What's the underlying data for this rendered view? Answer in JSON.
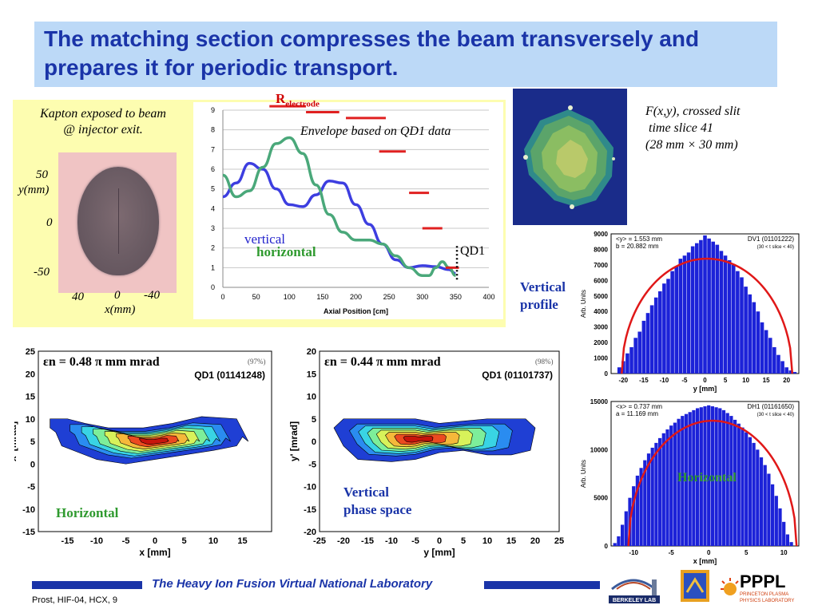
{
  "title": "The matching section compresses the beam transversely and prepares it for periodic transport.",
  "kapton": {
    "caption_line1": "Kapton exposed to beam",
    "caption_line2": "@ injector exit.",
    "y_tick_top": "50",
    "y_label": "y(mm)",
    "y_tick_mid": "0",
    "y_tick_bottom": "-50",
    "x_tick_left": "40",
    "x_tick_mid": "0",
    "x_tick_right": "-40",
    "x_label": "x(mm)"
  },
  "envelope": {
    "electrode_label_main": "R",
    "electrode_label_sub": "electrode",
    "title": "Envelope based on QD1 data",
    "vertical_label": "vertical",
    "horizontal_label": "horizontal",
    "qd1_label": "QD1"
  },
  "beam_image": {
    "caption_line1": "F(x,y),  crossed slit",
    "caption_line2": "time slice 41",
    "caption_line3": "(28 mm × 30 mm)"
  },
  "labels": {
    "vertical_profile": [
      "Vertical",
      "profile"
    ],
    "vertical_phase_space": [
      "Vertical",
      "phase space"
    ],
    "horizontal_phase": "Horizontal",
    "horizontal_profile": "Horizontal"
  },
  "footer": {
    "title": "The Heavy Ion Fusion Virtual National Laboratory",
    "citation": "Prost, HIF-04, HCX, 9"
  },
  "logos": {
    "berkeley": "BERKELEY LAB",
    "pppl": "PPPL",
    "pppl_sub1": "PRINCETON PLASMA",
    "pppl_sub2": "PHYSICS LABORATORY"
  },
  "colors": {
    "title_blue": "#1a34a8",
    "panel_yellow": "#fdfdb0",
    "vertical_blue": "#3d3ee0",
    "horizontal_green": "#4aa87a",
    "electrode_red": "#e02020",
    "histogram_blue": "#1c22d8",
    "fit_red": "#e01818"
  },
  "chart_data": [
    {
      "type": "line",
      "title": "",
      "xlabel": "Axial Position [cm]",
      "ylabel": "",
      "xlim": [
        0,
        400
      ],
      "ylim": [
        0,
        9
      ],
      "xticks": [
        0,
        50,
        100,
        150,
        200,
        250,
        300,
        350,
        400
      ],
      "yticks": [
        0,
        1,
        2,
        3,
        4,
        5,
        6,
        7,
        8,
        9
      ],
      "grid": true,
      "series": [
        {
          "name": "vertical",
          "x": [
            0,
            20,
            40,
            60,
            80,
            100,
            120,
            140,
            160,
            180,
            200,
            220,
            240,
            260,
            280,
            300,
            320,
            340,
            350
          ],
          "y": [
            4.6,
            5.3,
            6.3,
            6.0,
            5.0,
            4.2,
            4.1,
            4.7,
            5.4,
            5.3,
            4.2,
            3.2,
            2.2,
            1.4,
            1.0,
            1.1,
            1.05,
            0.9,
            0.7
          ]
        },
        {
          "name": "horizontal",
          "x": [
            0,
            20,
            40,
            60,
            80,
            100,
            120,
            140,
            160,
            180,
            200,
            220,
            240,
            260,
            280,
            300,
            310,
            320,
            330,
            340,
            350
          ],
          "y": [
            5.7,
            4.6,
            4.9,
            6.1,
            7.3,
            7.6,
            6.8,
            5.2,
            3.7,
            2.8,
            2.4,
            2.4,
            2.2,
            1.6,
            1.0,
            0.6,
            0.6,
            1.0,
            1.3,
            1.0,
            0.6
          ]
        },
        {
          "name": "R electrode",
          "x": [
            [
              10,
              60
            ],
            [
              70,
              125
            ],
            [
              125,
              175
            ],
            [
              185,
              245
            ],
            [
              235,
              275
            ],
            [
              280,
              310
            ],
            [
              300,
              330
            ],
            [
              335,
              355
            ]
          ],
          "y": [
            9.9,
            9.2,
            8.9,
            8.6,
            6.9,
            4.8,
            3.0,
            1.0
          ]
        }
      ],
      "annotations": [
        "Envelope based on QD1 data",
        "QD1"
      ]
    },
    {
      "type": "bar",
      "title": "DV1  (01101222)",
      "subtitle": "(30 < t slice < 40)",
      "stats": [
        "<y> =  1.553  mm",
        "b  =  20.882  mm"
      ],
      "xlabel": "y  [mm]",
      "ylabel": "Arb.  Units",
      "xlim": [
        -23,
        23
      ],
      "ylim": [
        0,
        9000
      ],
      "xticks": [
        -20,
        -15,
        -10,
        -5,
        0,
        5,
        10,
        15,
        20
      ],
      "yticks": [
        0,
        1000,
        2000,
        3000,
        4000,
        5000,
        6000,
        7000,
        8000,
        9000
      ],
      "fit_peak": 7400,
      "fit_halfwidth": 20.9,
      "bins": [
        -21,
        -20,
        -19,
        -18,
        -17,
        -16,
        -15,
        -14,
        -13,
        -12,
        -11,
        -10,
        -9,
        -8,
        -7,
        -6,
        -5,
        -4,
        -3,
        -2,
        -1,
        0,
        1,
        2,
        3,
        4,
        5,
        6,
        7,
        8,
        9,
        10,
        11,
        12,
        13,
        14,
        15,
        16,
        17,
        18,
        19,
        20,
        21,
        22
      ],
      "values": [
        400,
        800,
        1300,
        1700,
        2300,
        2700,
        3400,
        3900,
        4400,
        4900,
        5300,
        5800,
        6100,
        6600,
        6900,
        7400,
        7600,
        7800,
        8200,
        8400,
        8600,
        8900,
        8700,
        8500,
        8300,
        7900,
        7600,
        7300,
        7000,
        6600,
        6200,
        5600,
        5100,
        4600,
        4000,
        3300,
        2800,
        2300,
        1700,
        1200,
        800,
        400,
        200,
        100
      ]
    },
    {
      "type": "bar",
      "title": "DH1  (01161650)",
      "subtitle": "(30 < t slice < 40)",
      "stats": [
        "<x> =  0.737  mm",
        "a  =  11.169  mm"
      ],
      "xlabel": "x  [mm]",
      "ylabel": "Arb.  Units",
      "xlim": [
        -13,
        12
      ],
      "ylim": [
        0,
        15000
      ],
      "xticks": [
        -10,
        -5,
        0,
        5,
        10
      ],
      "yticks": [
        0,
        5000,
        10000,
        15000
      ],
      "fit_peak": 13000,
      "fit_halfwidth": 11.2,
      "bins": [
        -12.5,
        -12,
        -11.5,
        -11,
        -10.5,
        -10,
        -9.5,
        -9,
        -8.5,
        -8,
        -7.5,
        -7,
        -6.5,
        -6,
        -5.5,
        -5,
        -4.5,
        -4,
        -3.5,
        -3,
        -2.5,
        -2,
        -1.5,
        -1,
        -0.5,
        0,
        0.5,
        1,
        1.5,
        2,
        2.5,
        3,
        3.5,
        4,
        4.5,
        5,
        5.5,
        6,
        6.5,
        7,
        7.5,
        8,
        8.5,
        9,
        9.5,
        10,
        10.5,
        11
      ],
      "values": [
        300,
        1000,
        2200,
        3600,
        5000,
        6200,
        7300,
        8100,
        8900,
        9600,
        10200,
        10700,
        11200,
        11700,
        12100,
        12500,
        12800,
        13200,
        13500,
        13700,
        13900,
        14100,
        14300,
        14400,
        14500,
        14600,
        14500,
        14400,
        14300,
        14100,
        13800,
        13500,
        13100,
        12700,
        12300,
        11800,
        11300,
        10700,
        10000,
        9200,
        8400,
        7500,
        6400,
        5200,
        3900,
        2500,
        1200,
        400
      ]
    },
    {
      "type": "heatmap",
      "title": "QD1   (01141248)",
      "annotation": "εn = 0.48 π mm mrad",
      "annotation_pct": "(97%)",
      "xlabel": "x  [mm]",
      "ylabel": "x'  [mrad]",
      "xlim": [
        -20,
        20
      ],
      "ylim": [
        -15,
        25
      ],
      "xticks": [
        -15,
        -10,
        -5,
        0,
        5,
        10,
        15
      ],
      "yticks": [
        -15,
        -10,
        -5,
        0,
        5,
        10,
        15,
        20,
        25
      ],
      "levels": [
        "#1f3fd4",
        "#2a8cf0",
        "#39d4e4",
        "#7dee9a",
        "#d8f25a",
        "#f5b83a",
        "#ec4a20",
        "#c8140c"
      ],
      "outer_contour": [
        [
          -18,
          8
        ],
        [
          -17,
          7
        ],
        [
          -16,
          4
        ],
        [
          -10,
          1
        ],
        [
          -5,
          0
        ],
        [
          0,
          1
        ],
        [
          5,
          2
        ],
        [
          10,
          3
        ],
        [
          14,
          4
        ],
        [
          15,
          6
        ],
        [
          16,
          5
        ],
        [
          14,
          10
        ],
        [
          8,
          10.5
        ],
        [
          3,
          9
        ],
        [
          -2,
          8
        ],
        [
          -8,
          8
        ],
        [
          -12,
          9
        ],
        [
          -15,
          10
        ],
        [
          -18,
          10
        ]
      ],
      "core": [
        0,
        5.0
      ]
    },
    {
      "type": "heatmap",
      "title": "QD1   (01101737)",
      "annotation": "εn = 0.44 π mm mrad",
      "annotation_pct": "(98%)",
      "xlabel": "y  [mm]",
      "ylabel": "y'  [mrad]",
      "xlim": [
        -25,
        25
      ],
      "ylim": [
        -20,
        20
      ],
      "xticks": [
        -25,
        -20,
        -15,
        -10,
        -5,
        0,
        5,
        10,
        15,
        20,
        25
      ],
      "yticks": [
        -20,
        -15,
        -10,
        -5,
        0,
        5,
        10,
        15,
        20
      ],
      "levels": [
        "#1f3fd4",
        "#2a8cf0",
        "#39d4e4",
        "#7dee9a",
        "#d8f25a",
        "#f5b83a",
        "#ec4a20",
        "#c8140c"
      ],
      "outer_contour": [
        [
          -22,
          3
        ],
        [
          -20,
          -1
        ],
        [
          -17,
          -4
        ],
        [
          -10,
          -4.5
        ],
        [
          -5,
          -4
        ],
        [
          0,
          -2.5
        ],
        [
          5,
          -2
        ],
        [
          10,
          -3
        ],
        [
          15,
          -3
        ],
        [
          19,
          -2
        ],
        [
          20,
          3
        ],
        [
          18,
          5
        ],
        [
          10,
          5
        ],
        [
          5,
          4.5
        ],
        [
          0,
          4
        ],
        [
          -5,
          5
        ],
        [
          -12,
          5
        ],
        [
          -20,
          5
        ]
      ],
      "core": [
        -5,
        0.5
      ]
    }
  ]
}
